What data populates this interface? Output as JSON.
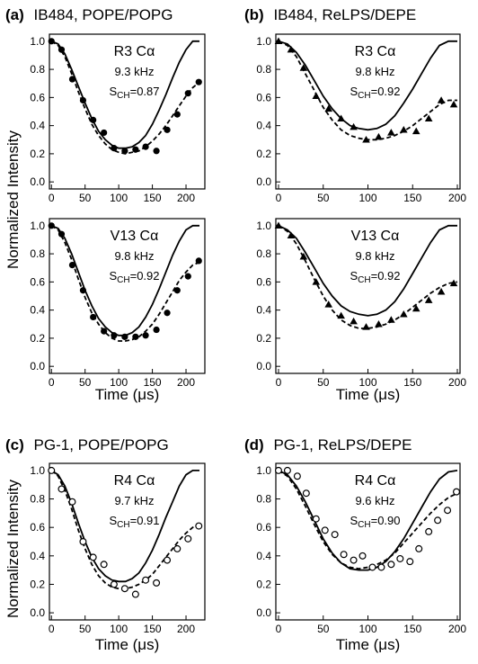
{
  "figure": {
    "ylabel_top": "Normalized Intensity",
    "ylabel_bottom": "Normalized Intensity"
  },
  "chart_data": [
    {
      "type": "line",
      "panel": "a",
      "letter": "(a)",
      "title": "IB484, POPE/POPG",
      "xlabel": "",
      "xlim": [
        -3,
        228
      ],
      "ylim": [
        -0.05,
        1.05
      ],
      "xticks": [
        0,
        50,
        100,
        150,
        200
      ],
      "yticks": [
        0.0,
        0.2,
        0.4,
        0.6,
        0.8,
        1.0
      ],
      "annotation": {
        "residue": "R3 Cα",
        "freq": "9.3 kHz",
        "s_label": "S",
        "s_sub": "CH",
        "s_value": "=0.87"
      },
      "series": [
        {
          "style": "solid",
          "x": [
            0,
            10,
            20,
            30,
            40,
            50,
            60,
            70,
            80,
            90,
            100,
            110,
            120,
            130,
            140,
            150,
            160,
            170,
            180,
            190,
            200,
            210,
            220
          ],
          "y": [
            1.0,
            0.98,
            0.91,
            0.8,
            0.68,
            0.56,
            0.45,
            0.36,
            0.3,
            0.26,
            0.24,
            0.24,
            0.25,
            0.28,
            0.33,
            0.41,
            0.51,
            0.62,
            0.74,
            0.85,
            0.94,
            1.0,
            1.0
          ]
        },
        {
          "style": "dashed",
          "x": [
            0,
            10,
            20,
            30,
            40,
            50,
            60,
            70,
            80,
            90,
            100,
            110,
            120,
            130,
            140,
            150,
            160,
            170,
            180,
            190,
            200,
            210,
            220
          ],
          "y": [
            1.0,
            0.97,
            0.89,
            0.77,
            0.64,
            0.52,
            0.41,
            0.33,
            0.27,
            0.23,
            0.21,
            0.2,
            0.21,
            0.22,
            0.25,
            0.29,
            0.34,
            0.4,
            0.47,
            0.54,
            0.61,
            0.67,
            0.71
          ]
        },
        {
          "style": "markers",
          "marker": "filled-circle",
          "x": [
            0,
            15,
            31,
            47,
            62,
            78,
            93,
            109,
            125,
            140,
            156,
            172,
            187,
            203,
            219
          ],
          "y": [
            1.0,
            0.94,
            0.73,
            0.58,
            0.44,
            0.35,
            0.24,
            0.22,
            0.23,
            0.25,
            0.22,
            0.37,
            0.48,
            0.63,
            0.71
          ]
        }
      ]
    },
    {
      "type": "line",
      "panel": "b",
      "letter": "(b)",
      "title": "IB484, ReLPS/DEPE",
      "xlabel": "",
      "xlim": [
        -3,
        203
      ],
      "ylim": [
        -0.05,
        1.05
      ],
      "xticks": [
        0,
        50,
        100,
        150,
        200
      ],
      "yticks": [
        0.0,
        0.2,
        0.4,
        0.6,
        0.8,
        1.0
      ],
      "annotation": {
        "residue": "R3 Cα",
        "freq": "9.8 kHz",
        "s_label": "S",
        "s_sub": "CH",
        "s_value": "=0.92"
      },
      "series": [
        {
          "style": "solid",
          "x": [
            0,
            10,
            20,
            30,
            40,
            50,
            60,
            70,
            80,
            90,
            100,
            110,
            120,
            130,
            140,
            150,
            160,
            170,
            180,
            190,
            200
          ],
          "y": [
            1.0,
            0.98,
            0.92,
            0.83,
            0.72,
            0.61,
            0.52,
            0.45,
            0.4,
            0.38,
            0.37,
            0.38,
            0.41,
            0.47,
            0.56,
            0.66,
            0.77,
            0.88,
            0.97,
            1.0,
            1.0
          ]
        },
        {
          "style": "dashed",
          "x": [
            0,
            10,
            20,
            30,
            40,
            50,
            60,
            70,
            80,
            90,
            100,
            110,
            120,
            130,
            140,
            150,
            160,
            170,
            180,
            190,
            200
          ],
          "y": [
            1.0,
            0.97,
            0.89,
            0.77,
            0.65,
            0.53,
            0.44,
            0.37,
            0.33,
            0.31,
            0.3,
            0.3,
            0.31,
            0.33,
            0.36,
            0.4,
            0.45,
            0.5,
            0.55,
            0.58,
            0.58
          ]
        },
        {
          "style": "markers",
          "marker": "filled-triangle",
          "x": [
            0,
            14,
            28,
            42,
            56,
            70,
            84,
            98,
            112,
            126,
            140,
            154,
            168,
            182,
            196
          ],
          "y": [
            1.0,
            0.94,
            0.81,
            0.61,
            0.52,
            0.45,
            0.39,
            0.3,
            0.32,
            0.35,
            0.37,
            0.36,
            0.45,
            0.58,
            0.55
          ]
        }
      ]
    },
    {
      "type": "line",
      "panel": "a2",
      "letter": "",
      "title": "",
      "xlabel": "Time (μs)",
      "xlim": [
        -3,
        228
      ],
      "ylim": [
        -0.05,
        1.05
      ],
      "xticks": [
        0,
        50,
        100,
        150,
        200
      ],
      "yticks": [
        0.0,
        0.2,
        0.4,
        0.6,
        0.8,
        1.0
      ],
      "annotation": {
        "residue": "V13 Cα",
        "freq": "9.8 kHz",
        "s_label": "S",
        "s_sub": "CH",
        "s_value": "=0.92"
      },
      "series": [
        {
          "style": "solid",
          "x": [
            0,
            10,
            20,
            30,
            40,
            50,
            60,
            70,
            80,
            90,
            100,
            110,
            120,
            130,
            140,
            150,
            160,
            170,
            180,
            190,
            200,
            210,
            220
          ],
          "y": [
            1.0,
            0.98,
            0.91,
            0.8,
            0.67,
            0.54,
            0.43,
            0.34,
            0.28,
            0.24,
            0.22,
            0.22,
            0.24,
            0.28,
            0.35,
            0.44,
            0.55,
            0.67,
            0.79,
            0.89,
            0.97,
            1.0,
            1.0
          ]
        },
        {
          "style": "dashed",
          "x": [
            0,
            10,
            20,
            30,
            40,
            50,
            60,
            70,
            80,
            90,
            100,
            110,
            120,
            130,
            140,
            150,
            160,
            170,
            180,
            190,
            200,
            210,
            220
          ],
          "y": [
            1.0,
            0.97,
            0.88,
            0.76,
            0.62,
            0.49,
            0.38,
            0.3,
            0.24,
            0.2,
            0.18,
            0.18,
            0.19,
            0.21,
            0.25,
            0.3,
            0.37,
            0.45,
            0.53,
            0.61,
            0.67,
            0.72,
            0.74
          ]
        },
        {
          "style": "markers",
          "marker": "filled-circle",
          "x": [
            0,
            15,
            31,
            47,
            62,
            78,
            93,
            109,
            125,
            140,
            156,
            172,
            187,
            203,
            219
          ],
          "y": [
            1.0,
            0.94,
            0.72,
            0.54,
            0.35,
            0.25,
            0.22,
            0.21,
            0.21,
            0.22,
            0.26,
            0.38,
            0.54,
            0.64,
            0.75
          ]
        }
      ]
    },
    {
      "type": "line",
      "panel": "b2",
      "letter": "",
      "title": "",
      "xlabel": "Time (μs)",
      "xlim": [
        -3,
        203
      ],
      "ylim": [
        -0.05,
        1.05
      ],
      "xticks": [
        0,
        50,
        100,
        150,
        200
      ],
      "yticks": [
        0.0,
        0.2,
        0.4,
        0.6,
        0.8,
        1.0
      ],
      "annotation": {
        "residue": "V13 Cα",
        "freq": "9.8 kHz",
        "s_label": "S",
        "s_sub": "CH",
        "s_value": "=0.92"
      },
      "series": [
        {
          "style": "solid",
          "x": [
            0,
            10,
            20,
            30,
            40,
            50,
            60,
            70,
            80,
            90,
            100,
            110,
            120,
            130,
            140,
            150,
            160,
            170,
            180,
            190,
            200
          ],
          "y": [
            1.0,
            0.97,
            0.91,
            0.81,
            0.7,
            0.59,
            0.5,
            0.43,
            0.39,
            0.37,
            0.36,
            0.37,
            0.4,
            0.46,
            0.55,
            0.66,
            0.77,
            0.88,
            0.97,
            1.0,
            1.0
          ]
        },
        {
          "style": "dashed",
          "x": [
            0,
            10,
            20,
            30,
            40,
            50,
            60,
            70,
            80,
            90,
            100,
            110,
            120,
            130,
            140,
            150,
            160,
            170,
            180,
            190,
            200
          ],
          "y": [
            1.0,
            0.96,
            0.87,
            0.75,
            0.62,
            0.5,
            0.4,
            0.33,
            0.29,
            0.27,
            0.27,
            0.28,
            0.3,
            0.33,
            0.37,
            0.42,
            0.47,
            0.52,
            0.56,
            0.59,
            0.6
          ]
        },
        {
          "style": "markers",
          "marker": "filled-triangle",
          "x": [
            0,
            14,
            28,
            42,
            56,
            70,
            84,
            98,
            112,
            126,
            140,
            154,
            168,
            182,
            196
          ],
          "y": [
            1.0,
            0.93,
            0.78,
            0.6,
            0.44,
            0.36,
            0.32,
            0.28,
            0.3,
            0.33,
            0.37,
            0.41,
            0.47,
            0.53,
            0.59
          ]
        }
      ]
    },
    {
      "type": "line",
      "panel": "c",
      "letter": "(c)",
      "title": "PG-1, POPE/POPG",
      "xlabel": "Time (μs)",
      "xlim": [
        -3,
        228
      ],
      "ylim": [
        -0.05,
        1.05
      ],
      "xticks": [
        0,
        50,
        100,
        150,
        200
      ],
      "yticks": [
        0.0,
        0.2,
        0.4,
        0.6,
        0.8,
        1.0
      ],
      "annotation": {
        "residue": "R4 Cα",
        "freq": "9.7 kHz",
        "s_label": "S",
        "s_sub": "CH",
        "s_value": "=0.91"
      },
      "series": [
        {
          "style": "solid",
          "x": [
            0,
            10,
            20,
            30,
            40,
            50,
            60,
            70,
            80,
            90,
            100,
            110,
            120,
            130,
            140,
            150,
            160,
            170,
            180,
            190,
            200,
            210,
            220
          ],
          "y": [
            1.0,
            0.97,
            0.89,
            0.77,
            0.63,
            0.5,
            0.39,
            0.31,
            0.26,
            0.23,
            0.22,
            0.22,
            0.24,
            0.28,
            0.35,
            0.44,
            0.55,
            0.67,
            0.78,
            0.89,
            0.97,
            1.0,
            1.0
          ]
        },
        {
          "style": "dashed",
          "x": [
            0,
            10,
            20,
            30,
            40,
            50,
            60,
            70,
            80,
            90,
            100,
            110,
            120,
            130,
            140,
            150,
            160,
            170,
            180,
            190,
            200,
            210,
            220
          ],
          "y": [
            1.0,
            0.96,
            0.86,
            0.73,
            0.58,
            0.45,
            0.34,
            0.26,
            0.21,
            0.18,
            0.17,
            0.17,
            0.18,
            0.2,
            0.23,
            0.27,
            0.33,
            0.39,
            0.45,
            0.51,
            0.56,
            0.6,
            0.62
          ]
        },
        {
          "style": "markers",
          "marker": "open-circle",
          "x": [
            0,
            15,
            31,
            47,
            62,
            78,
            93,
            109,
            125,
            140,
            156,
            172,
            187,
            203,
            219
          ],
          "y": [
            1.0,
            0.87,
            0.78,
            0.5,
            0.39,
            0.34,
            0.2,
            0.17,
            0.13,
            0.23,
            0.21,
            0.37,
            0.45,
            0.52,
            0.61
          ]
        }
      ]
    },
    {
      "type": "line",
      "panel": "d",
      "letter": "(d)",
      "title": "PG-1, ReLPS/DEPE",
      "xlabel": "Time (μs)",
      "xlim": [
        -3,
        203
      ],
      "ylim": [
        -0.05,
        1.05
      ],
      "xticks": [
        0,
        50,
        100,
        150,
        200
      ],
      "yticks": [
        0.0,
        0.2,
        0.4,
        0.6,
        0.8,
        1.0
      ],
      "annotation": {
        "residue": "R4 Cα",
        "freq": "9.6 kHz",
        "s_label": "S",
        "s_sub": "CH",
        "s_value": "=0.90"
      },
      "series": [
        {
          "style": "solid",
          "x": [
            0,
            10,
            20,
            30,
            40,
            50,
            60,
            70,
            80,
            90,
            100,
            110,
            120,
            130,
            140,
            150,
            160,
            170,
            180,
            190,
            200
          ],
          "y": [
            1.0,
            0.97,
            0.89,
            0.78,
            0.65,
            0.52,
            0.42,
            0.35,
            0.31,
            0.3,
            0.3,
            0.32,
            0.36,
            0.43,
            0.52,
            0.63,
            0.74,
            0.85,
            0.94,
            0.99,
            1.0
          ]
        },
        {
          "style": "dashed",
          "x": [
            0,
            10,
            20,
            30,
            40,
            50,
            60,
            70,
            80,
            90,
            100,
            110,
            120,
            130,
            140,
            150,
            160,
            170,
            180,
            190,
            200
          ],
          "y": [
            1.0,
            0.96,
            0.87,
            0.75,
            0.62,
            0.5,
            0.41,
            0.35,
            0.32,
            0.31,
            0.32,
            0.34,
            0.37,
            0.42,
            0.49,
            0.56,
            0.63,
            0.7,
            0.76,
            0.81,
            0.84
          ]
        },
        {
          "style": "markers",
          "marker": "open-circle",
          "x": [
            0,
            10,
            21,
            31,
            42,
            52,
            63,
            73,
            84,
            94,
            105,
            115,
            126,
            136,
            147,
            157,
            168,
            178,
            189,
            199
          ],
          "y": [
            1.0,
            1.0,
            0.96,
            0.84,
            0.66,
            0.58,
            0.55,
            0.41,
            0.37,
            0.4,
            0.32,
            0.32,
            0.34,
            0.38,
            0.36,
            0.45,
            0.57,
            0.65,
            0.72,
            0.85
          ]
        }
      ]
    }
  ]
}
